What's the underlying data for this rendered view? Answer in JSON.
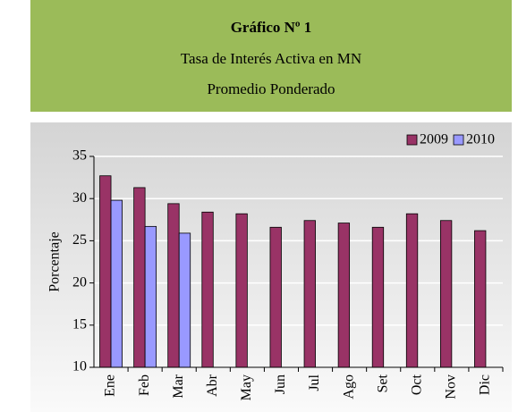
{
  "chart_data": {
    "type": "bar",
    "title": "Gráfico Nº 1",
    "subtitle": [
      "Tasa de Interés Activa en MN",
      "Promedio Ponderado"
    ],
    "ylabel": "Porcentaje",
    "categories": [
      "Ene",
      "Feb",
      "Mar",
      "Abr",
      "May",
      "Jun",
      "Jul",
      "Ago",
      "Set",
      "Oct",
      "Nov",
      "Dic"
    ],
    "series": [
      {
        "name": "2009",
        "color": "#993366",
        "values": [
          32.7,
          31.3,
          29.4,
          28.4,
          28.2,
          26.6,
          27.4,
          27.1,
          26.6,
          28.2,
          27.4,
          26.2
        ]
      },
      {
        "name": "2010",
        "color": "#9999ff",
        "values": [
          29.8,
          26.7,
          25.9,
          null,
          null,
          null,
          null,
          null,
          null,
          null,
          null,
          null
        ]
      }
    ],
    "ylim": [
      10,
      35
    ],
    "yticks": [
      10,
      15,
      20,
      25,
      30,
      35
    ],
    "grid": true,
    "legend": "top-right"
  }
}
